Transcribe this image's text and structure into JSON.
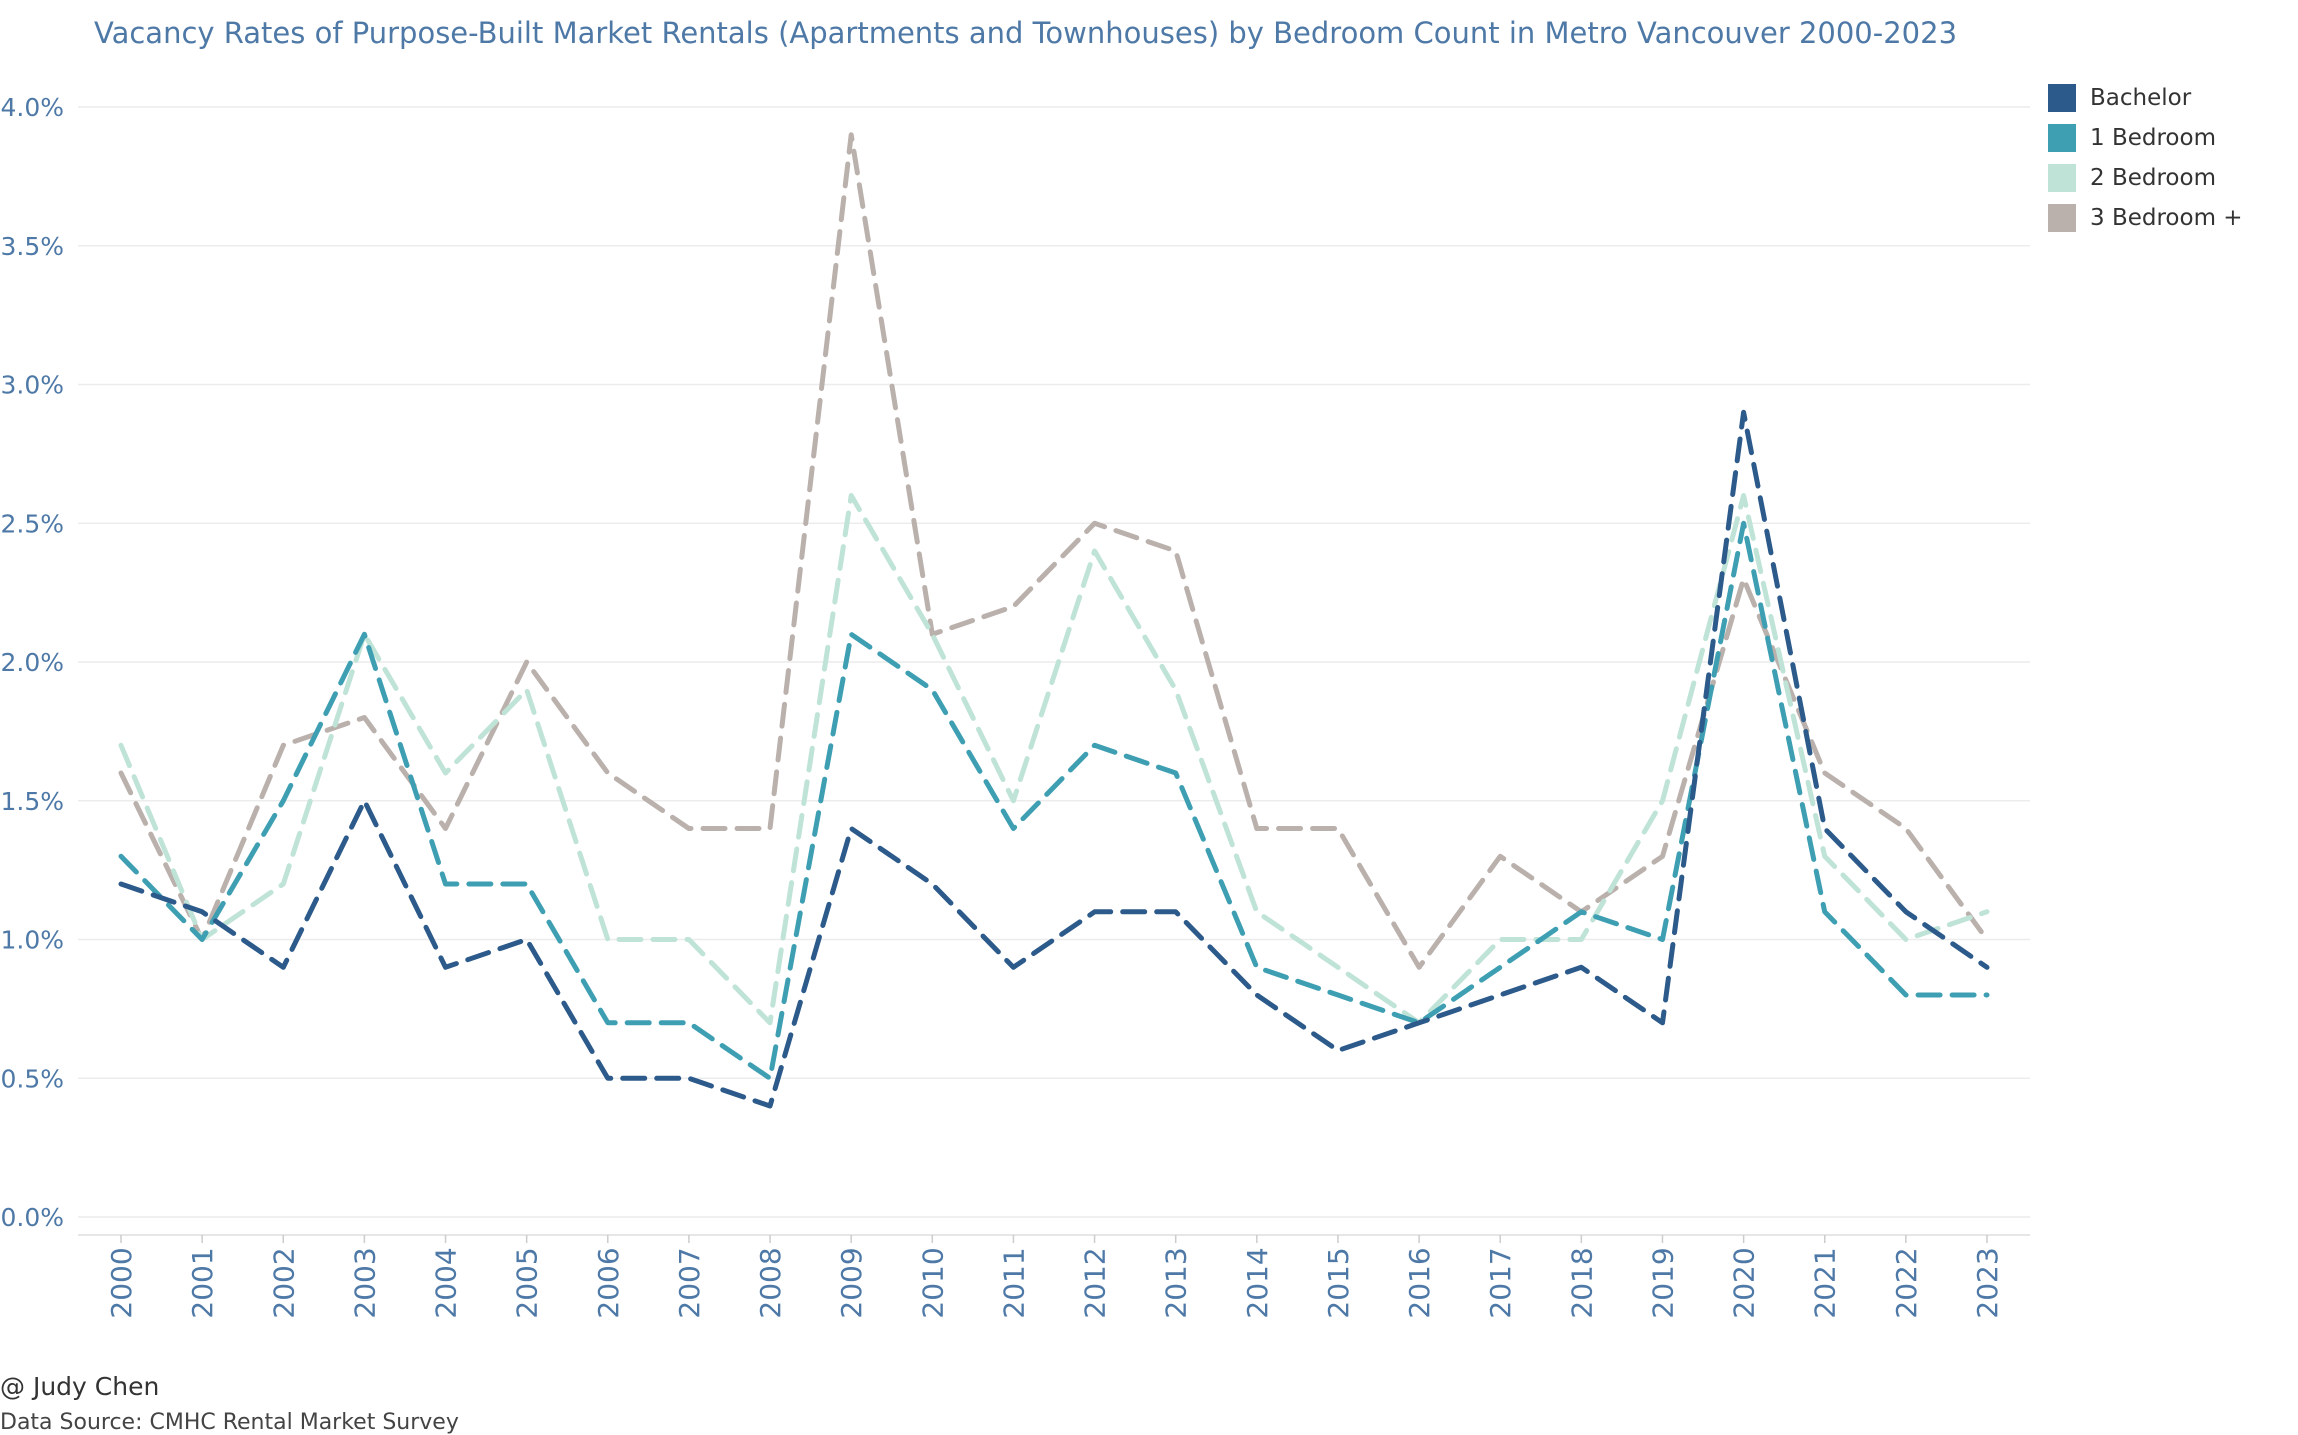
{
  "chart_data": {
    "type": "line",
    "title": "Vacancy Rates of Purpose-Built Market Rentals (Apartments and Townhouses) by Bedroom Count in Metro Vancouver 2000-2023",
    "xlabel": "",
    "ylabel": "",
    "x": [
      "2000",
      "2001",
      "2002",
      "2003",
      "2004",
      "2005",
      "2006",
      "2007",
      "2008",
      "2009",
      "2010",
      "2011",
      "2012",
      "2013",
      "2014",
      "2015",
      "2016",
      "2017",
      "2018",
      "2019",
      "2020",
      "2021",
      "2022",
      "2023"
    ],
    "ylim": [
      0,
      4.0
    ],
    "yticks": [
      0.0,
      0.5,
      1.0,
      1.5,
      2.0,
      2.5,
      3.0,
      3.5,
      4.0
    ],
    "ytick_labels": [
      "0.0%",
      "0.5%",
      "1.0%",
      "1.5%",
      "2.0%",
      "2.5%",
      "3.0%",
      "3.5%",
      "4.0%"
    ],
    "grid": true,
    "line_style": "dashed",
    "legend_position": "top-right",
    "series": [
      {
        "name": "3 Bedroom +",
        "color": "#bab0ac",
        "values": [
          1.6,
          1.0,
          1.7,
          1.8,
          1.4,
          2.0,
          1.6,
          1.4,
          1.4,
          3.9,
          2.1,
          2.2,
          2.5,
          2.4,
          1.4,
          1.4,
          0.9,
          1.3,
          1.1,
          1.3,
          2.3,
          1.6,
          1.4,
          1.0
        ]
      },
      {
        "name": "2 Bedroom",
        "color": "#bfe3d7",
        "values": [
          1.7,
          1.0,
          1.2,
          2.1,
          1.6,
          1.9,
          1.0,
          1.0,
          0.7,
          2.6,
          2.1,
          1.5,
          2.4,
          1.9,
          1.1,
          0.9,
          0.7,
          1.0,
          1.0,
          1.5,
          2.6,
          1.3,
          1.0,
          1.1
        ]
      },
      {
        "name": "1 Bedroom",
        "color": "#3e9fb3",
        "values": [
          1.3,
          1.0,
          1.5,
          2.1,
          1.2,
          1.2,
          0.7,
          0.7,
          0.5,
          2.1,
          1.9,
          1.4,
          1.7,
          1.6,
          0.9,
          0.8,
          0.7,
          0.9,
          1.1,
          1.0,
          2.5,
          1.1,
          0.8,
          0.8
        ]
      },
      {
        "name": "Bachelor",
        "color": "#2c5a8a",
        "values": [
          1.2,
          1.1,
          0.9,
          1.5,
          0.9,
          1.0,
          0.5,
          0.5,
          0.4,
          1.4,
          1.2,
          0.9,
          1.1,
          1.1,
          0.8,
          0.6,
          0.7,
          0.8,
          0.9,
          0.7,
          2.9,
          1.4,
          1.1,
          0.9
        ]
      }
    ],
    "legend_order": [
      "Bachelor",
      "1 Bedroom",
      "2 Bedroom",
      "3 Bedroom +"
    ]
  },
  "colors": {
    "axis_text": "#4e79a7",
    "grid": "#ececec"
  },
  "credits": {
    "author": "@ Judy Chen",
    "source": "Data Source: CMHC Rental Market Survey"
  }
}
